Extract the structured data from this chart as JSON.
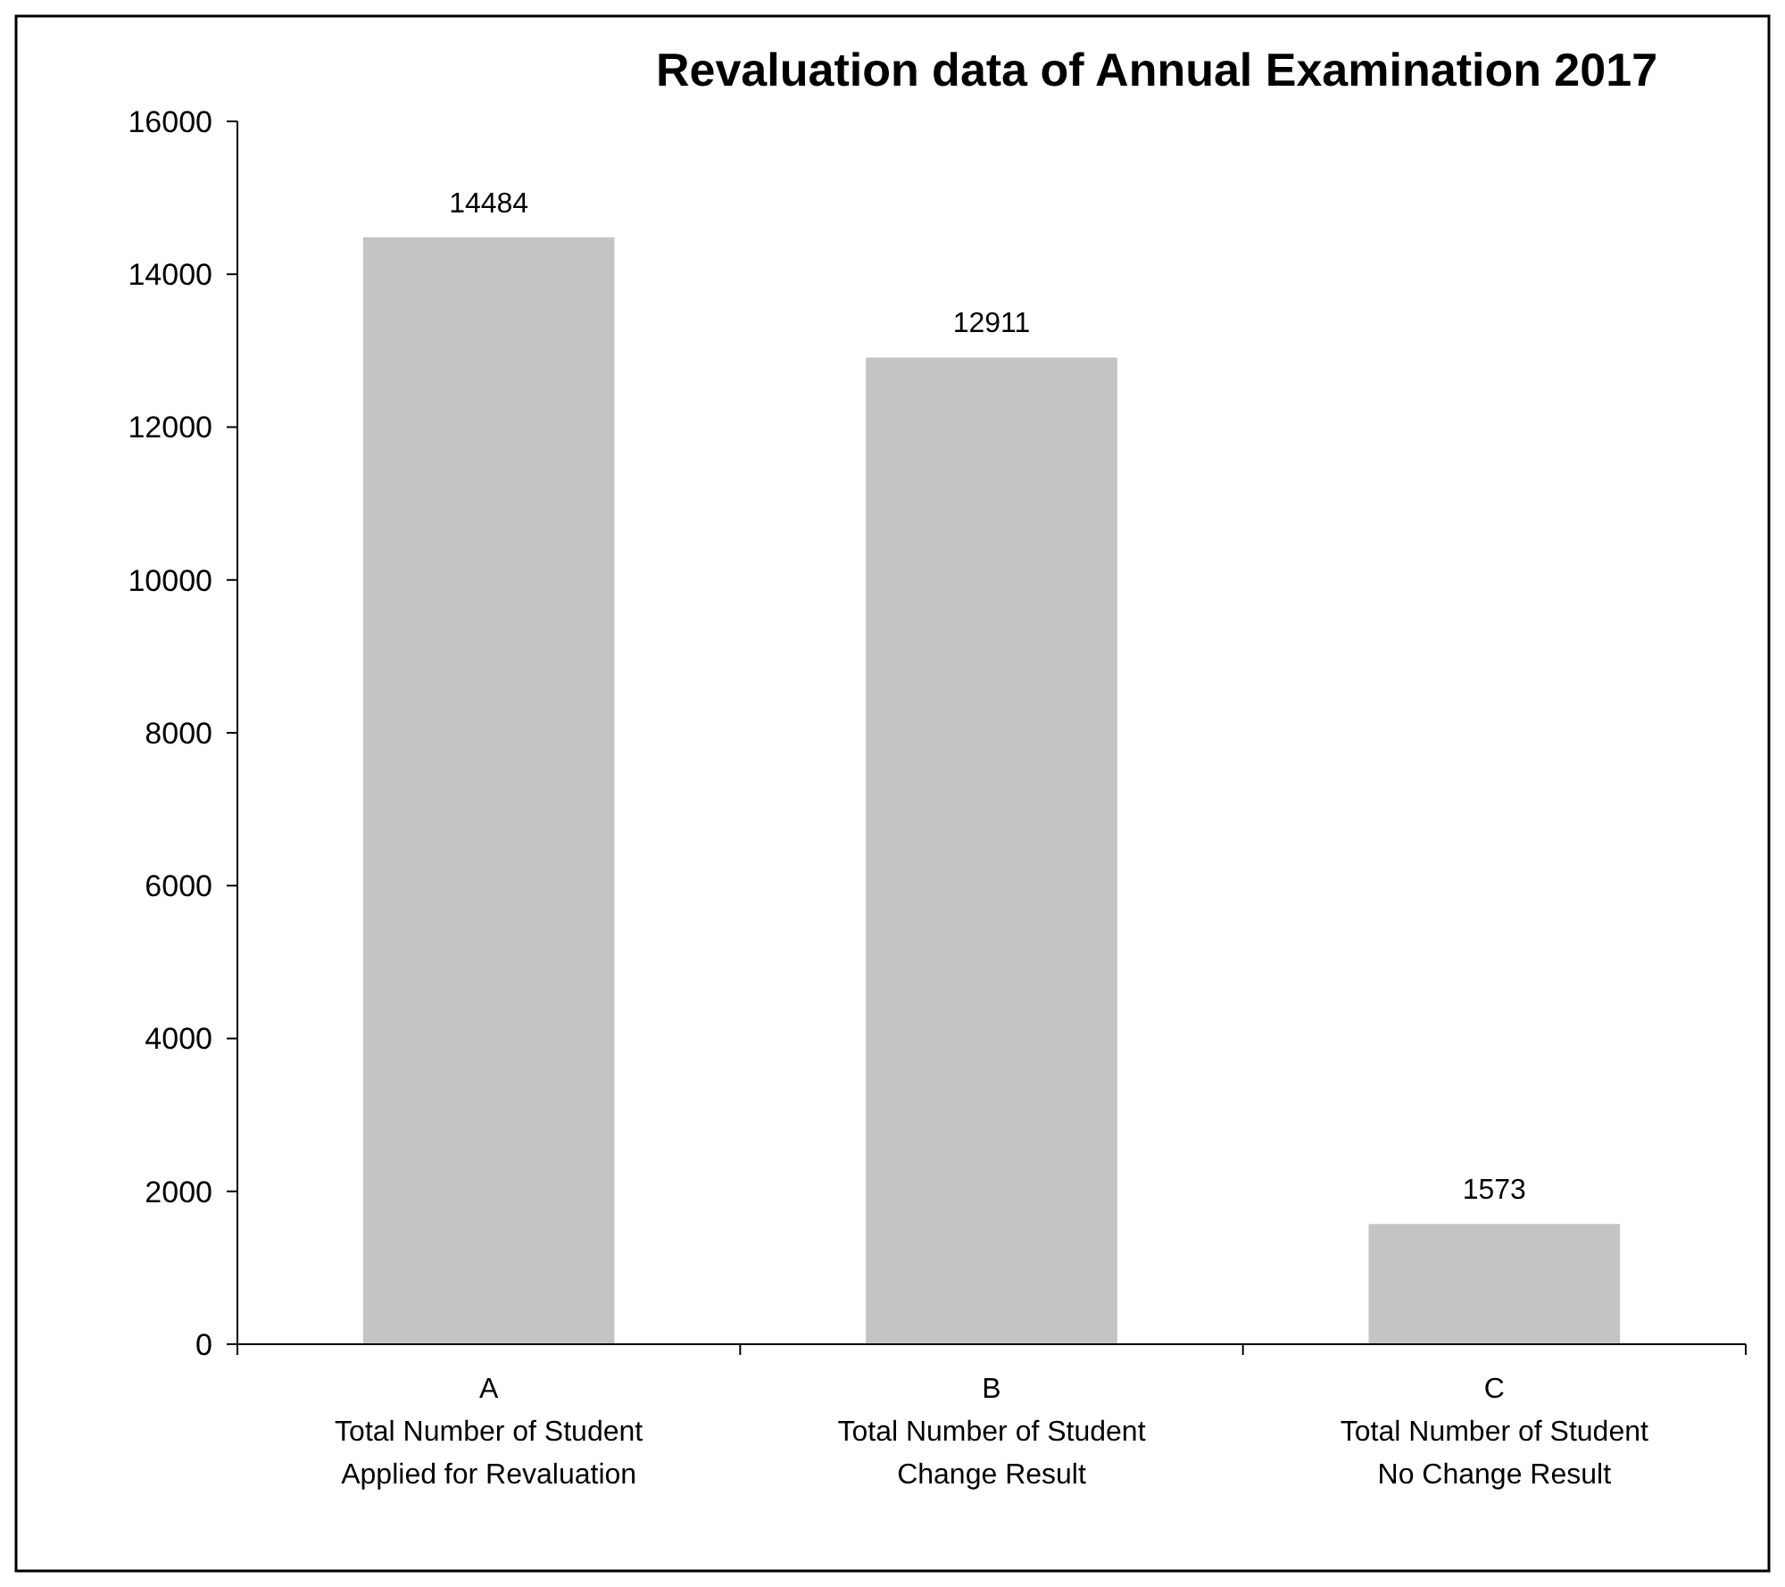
{
  "chart_data": {
    "type": "bar",
    "title": "Revaluation data of Annual Examination 2017",
    "categories": [
      "A\nTotal Number of Student\nApplied for Revaluation",
      "B\nTotal Number of Student\nChange Result",
      "C\nTotal Number of Student\nNo Change Result"
    ],
    "values": [
      14484,
      12911,
      1573
    ],
    "color": "#c4c4c4",
    "ylim": [
      0,
      16000
    ],
    "yticks": [
      0,
      2000,
      4000,
      6000,
      8000,
      10000,
      12000,
      14000,
      16000
    ],
    "data_labels": true
  }
}
